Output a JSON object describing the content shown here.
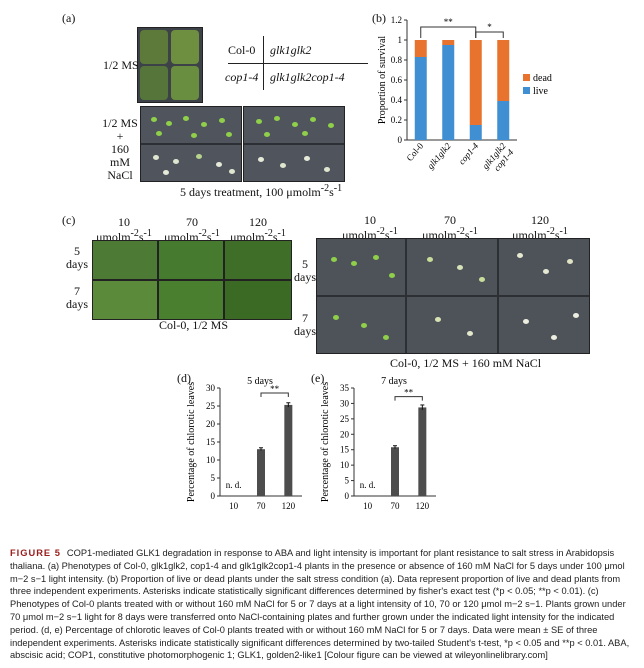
{
  "panel_a": {
    "label": "(a)",
    "row1_label": "1/2 MS",
    "row2_label_l1": "1/2 MS",
    "row2_label_l2": "+",
    "row2_label_l3": "160 mM",
    "row2_label_l4": "NaCl",
    "key": {
      "tl": "Col-0",
      "tr": "glk1glk2",
      "bl": "cop1-4",
      "br": "glk1glk2cop1-4"
    },
    "footer": "5 days treatment, 100 μmolm",
    "footer_sup1": "-2",
    "footer_mid": "s",
    "footer_sup2": "-1"
  },
  "panel_b": {
    "label": "(b)"
  },
  "panel_c": {
    "label": "(c)",
    "col1_l1": "10",
    "col1_l2": "μmolm",
    "col1_sup": "-2",
    "col1_s": "s",
    "col1_sup2": "-1",
    "col2_l1": "70",
    "col2_l2": "μmolm",
    "col2_sup": "-2",
    "col2_s": "s",
    "col2_sup2": "-1",
    "col3_l1": "120",
    "col3_l2": "μmolm",
    "col3_sup": "-2",
    "col3_s": "s",
    "col3_sup2": "-1",
    "row1_l1": "5",
    "row1_l2": "days",
    "row2_l1": "7",
    "row2_l2": "days",
    "left_footer": "Col-0, 1/2 MS",
    "right_footer": "Col-0, 1/2 MS + 160 mM NaCl",
    "r_col1_l1": "10",
    "r_col2_l1": "70",
    "r_col3_l1": "120",
    "r_row1_l1": "5",
    "r_row1_l2": "days",
    "r_row2_l1": "7",
    "r_row2_l2": "days"
  },
  "panel_d": {
    "label": "(d)"
  },
  "panel_e": {
    "label": "(e)"
  },
  "caption": {
    "fig_label": "FIGURE 5",
    "text": "COP1-mediated GLK1 degradation in response to ABA and light intensity is important for plant resistance to salt stress in Arabidopsis thaliana. (a) Phenotypes of Col-0, glk1glk2, cop1-4 and glk1glk2cop1-4 plants in the presence or absence of 160 mM NaCl for 5 days under 100 μmol m−2 s−1 light intensity. (b) Proportion of live or dead plants under the salt stress condition (a). Data represent proportion of live and dead plants from three independent experiments. Asterisks indicate statistically significant differences determined by fisher's exact test (*p < 0.05; **p < 0.01). (c) Phenotypes of Col-0 plants treated with or without 160 mM NaCl for 5 or 7 days at a light intensity of 10, 70 or 120 μmol m−2 s−1. Plants grown under 70 μmol m−2 s−1 light for 8 days were transferred onto NaCl-containing plates and further grown under the indicated light intensity for the indicated period. (d, e) Percentage of chlorotic leaves of Col-0 plants treated with or without 160 mM NaCl for 5 or 7 days. Data were mean ± SE of three independent experiments. Asterisks indicate statistically significant differences determined by two-tailed Student's t-test, *p < 0.05 and **p < 0.01. ABA, abscisic acid; COP1, constitutive photomorphogenic 1; GLK1, golden2-like1 [Colour figure can be viewed at wileyonlinelibrary.com]"
  },
  "colors": {
    "dead": "#e8732f",
    "live": "#3f8fd2",
    "bar_gray": "#4d4d4d"
  },
  "chart_data": [
    {
      "type": "bar",
      "stacked": true,
      "categories": [
        "Col-0",
        "glk1glk2",
        "cop1-4",
        "glk1glk2\ncop1-4"
      ],
      "series": [
        {
          "name": "live",
          "values": [
            0.83,
            0.95,
            0.15,
            0.39
          ]
        },
        {
          "name": "dead",
          "values": [
            0.17,
            0.05,
            0.85,
            0.61
          ]
        }
      ],
      "ylabel": "Proportion of survival",
      "ylim": [
        0,
        1.2
      ],
      "yticks": [
        "0",
        "0.2",
        "0.4",
        "0.6",
        "0.8",
        "1",
        "1.2"
      ],
      "legend": [
        "dead",
        "live"
      ],
      "legend_position": "right",
      "annotations": [
        "**",
        "*"
      ]
    },
    {
      "type": "bar",
      "title": "5 days",
      "categories": [
        "10",
        "70",
        "120"
      ],
      "values": [
        0,
        13,
        25.3
      ],
      "errors": [
        0,
        0.4,
        0.6
      ],
      "na_labels": [
        "n. d.",
        "",
        ""
      ],
      "ylabel": "Percentage of chlorotic leaves",
      "ylim": [
        0,
        30
      ],
      "yticks": [
        "0",
        "5",
        "10",
        "15",
        "20",
        "25",
        "30"
      ],
      "annotations": [
        "**"
      ]
    },
    {
      "type": "bar",
      "title": "7 days",
      "categories": [
        "10",
        "70",
        "120"
      ],
      "values": [
        0,
        15.8,
        28.7
      ],
      "errors": [
        0,
        0.5,
        0.8
      ],
      "na_labels": [
        "n. d.",
        "",
        ""
      ],
      "ylabel": "Percentage of chlorotic leaves",
      "ylim": [
        0,
        35
      ],
      "yticks": [
        "0",
        "5",
        "10",
        "15",
        "20",
        "25",
        "30",
        "35"
      ],
      "annotations": [
        "**"
      ]
    }
  ]
}
